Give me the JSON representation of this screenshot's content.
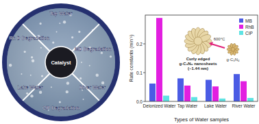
{
  "chart_data": {
    "type": "bar",
    "x_label": "Types of Water samples",
    "y_label": "Rate constants (min⁻¹)",
    "categories": [
      "Deionized Water",
      "Tap Water",
      "Lake Water",
      "River Water"
    ],
    "series": [
      {
        "name": "MB",
        "color": "#4b5ce4",
        "values": [
          0.062,
          0.08,
          0.075,
          0.095
        ]
      },
      {
        "name": "RhB",
        "color": "#e21fe0",
        "values": [
          0.29,
          0.055,
          0.052,
          0.07
        ]
      },
      {
        "name": "CIP",
        "color": "#5fe3e3",
        "values": [
          0.02,
          0.015,
          0.01,
          0.012
        ]
      }
    ],
    "ylim": [
      0,
      0.3
    ],
    "yticks": [
      {
        "value": 0,
        "label": "0.0"
      },
      0.1,
      0.2
    ],
    "grid": false,
    "legend": "top-right"
  },
  "diagram": {
    "labels": [
      "Tap Water",
      "Rh B Degradation",
      "MB Degradation",
      "Lake Water",
      "River Water",
      "CIP Degradation"
    ],
    "center": "Catalyst"
  },
  "inset": {
    "temperature": "600°C",
    "material": "g-C₃N₄",
    "caption": [
      "Curly edged",
      "g-C₃N₄ nanosheets",
      "(~1.44 nm)"
    ]
  }
}
